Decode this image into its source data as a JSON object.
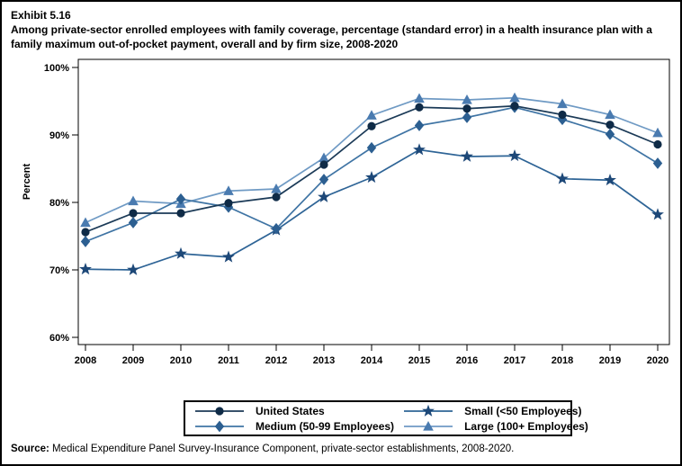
{
  "header": {
    "exhibit": "Exhibit 5.16",
    "title": "Among private-sector enrolled employees with family coverage, percentage (standard error) in a health insurance plan with a family maximum out-of-pocket payment, overall and by firm size, 2008-2020"
  },
  "source": {
    "label": "Source:",
    "text": " Medical Expenditure Panel Survey-Insurance Component, private-sector establishments, 2008-2020."
  },
  "chart_data": {
    "type": "line",
    "title": "Percentage in a health insurance plan with a family maximum out-of-pocket payment, overall and by firm size, 2008-2020",
    "xlabel": "",
    "ylabel": "Percent",
    "x_labels": [
      "2008",
      "2009",
      "2010",
      "2011",
      "2012",
      "2013",
      "2014",
      "2015",
      "2016",
      "2017",
      "2018",
      "2019",
      "2020"
    ],
    "y_ticks": [
      100,
      90,
      80,
      70,
      60
    ],
    "y_tick_suffix": "%",
    "ylim": [
      60,
      100
    ],
    "grid": false,
    "legend_position": "bottom",
    "series": [
      {
        "name": "United States",
        "marker": "circle",
        "marker_color": "#0f2b47",
        "line_color": "#1b3a57",
        "values": [
          75.6,
          78.4,
          78.4,
          79.9,
          80.8,
          85.6,
          91.3,
          94.1,
          93.9,
          94.3,
          93.0,
          91.5,
          88.6
        ]
      },
      {
        "name": "Medium (50-99 Employees)",
        "marker": "diamond",
        "marker_color": "#2c5f91",
        "line_color": "#3f74a4",
        "values": [
          74.2,
          77.0,
          80.5,
          79.3,
          76.1,
          83.4,
          88.1,
          91.4,
          92.6,
          94.1,
          92.3,
          90.1,
          85.8
        ]
      },
      {
        "name": "Small (<50 Employees)",
        "marker": "star",
        "marker_color": "#1d4878",
        "line_color": "#2e6496",
        "values": [
          70.1,
          70.0,
          72.4,
          71.9,
          75.9,
          80.8,
          83.7,
          87.8,
          86.8,
          86.9,
          83.5,
          83.3,
          78.2
        ]
      },
      {
        "name": "Large (100+ Employees)",
        "marker": "triangle",
        "marker_color": "#4a7bb0",
        "line_color": "#6f9ac4",
        "values": [
          77.0,
          80.2,
          79.8,
          81.7,
          82.0,
          86.6,
          92.9,
          95.4,
          95.2,
          95.5,
          94.6,
          93.0,
          90.3
        ]
      }
    ]
  }
}
